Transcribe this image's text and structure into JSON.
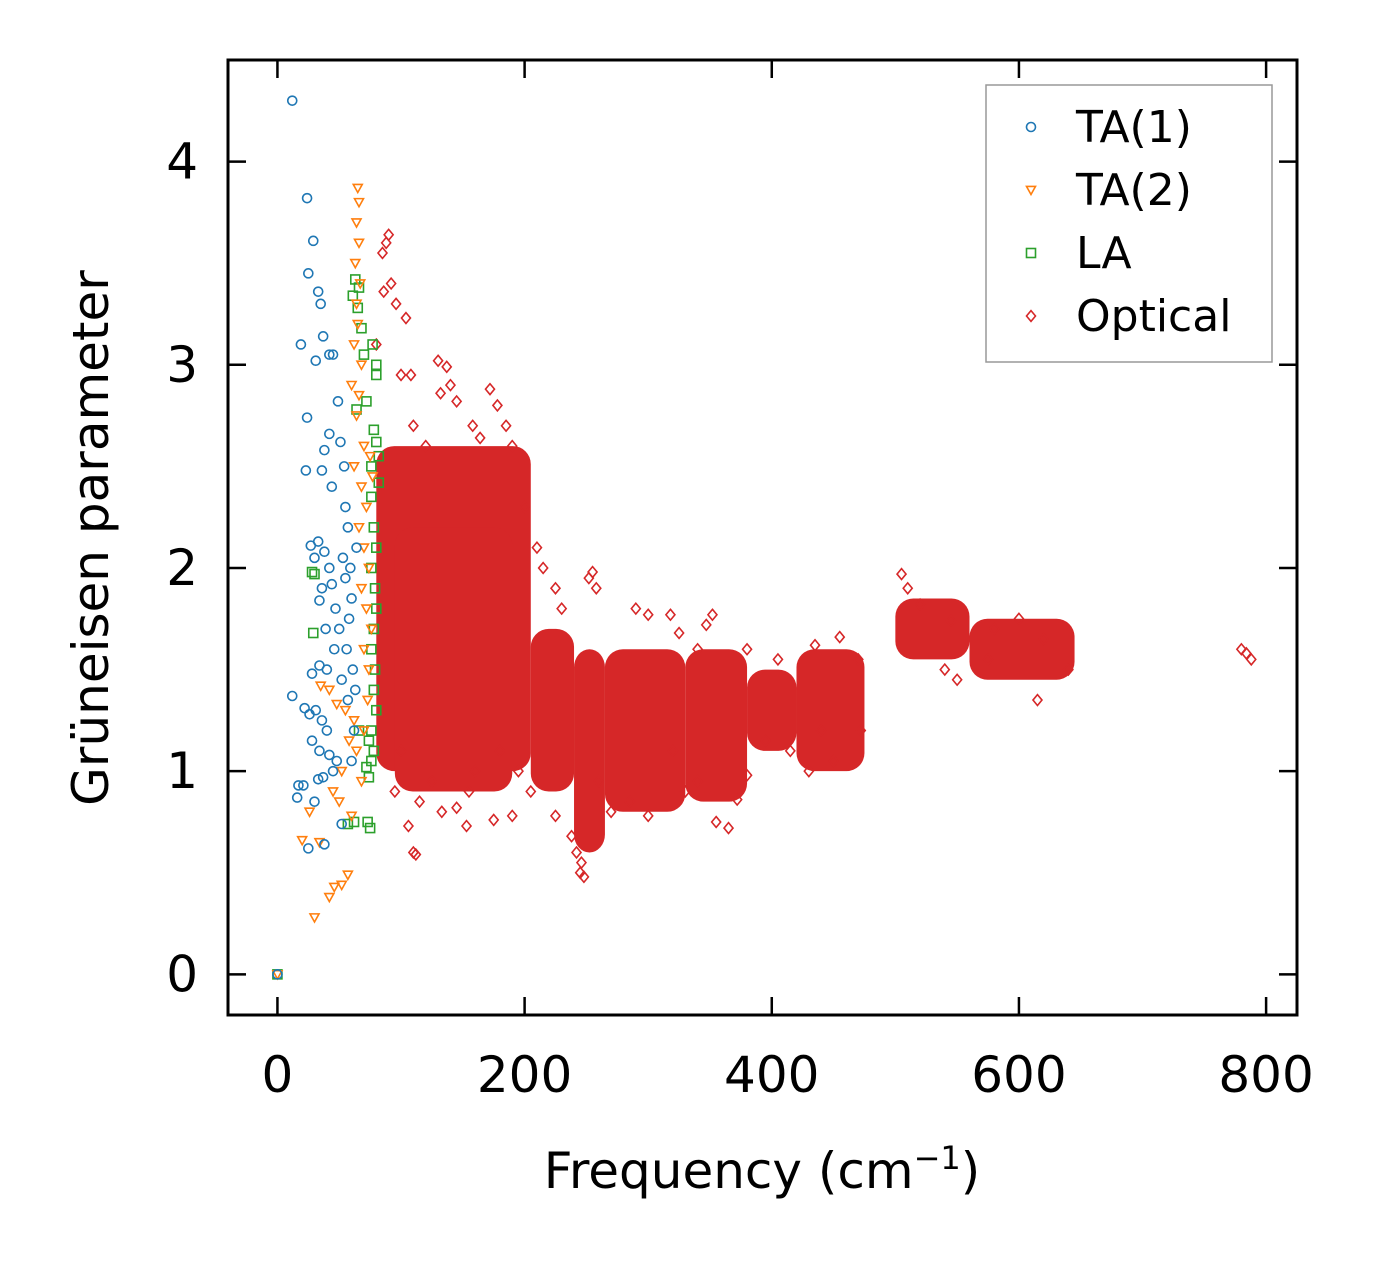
{
  "chart_data": {
    "type": "scatter",
    "title": "",
    "xlabel": "Frequency (cm",
    "xlabel_sup": "−1",
    "xlabel_close": ")",
    "ylabel": "Grüneisen parameter",
    "xlim": [
      -40,
      825
    ],
    "ylim": [
      -0.2,
      4.5
    ],
    "xticks": [
      0,
      200,
      400,
      600,
      800
    ],
    "yticks": [
      0,
      1,
      2,
      3,
      4
    ],
    "legend_position": "top-right",
    "series": [
      {
        "name": "TA(1)",
        "marker": "circle",
        "color": "#1f77b4",
        "points": [
          [
            0,
            0
          ],
          [
            12,
            4.3
          ],
          [
            24,
            3.82
          ],
          [
            29,
            3.61
          ],
          [
            25,
            3.45
          ],
          [
            33,
            3.36
          ],
          [
            35,
            3.3
          ],
          [
            19,
            3.1
          ],
          [
            31,
            3.02
          ],
          [
            24,
            2.74
          ],
          [
            37,
            3.14
          ],
          [
            42,
            3.05
          ],
          [
            45,
            3.05
          ],
          [
            38,
            2.58
          ],
          [
            42,
            2.66
          ],
          [
            44,
            2.4
          ],
          [
            49,
            2.82
          ],
          [
            51,
            2.62
          ],
          [
            54,
            2.5
          ],
          [
            23,
            2.48
          ],
          [
            36,
            2.48
          ],
          [
            27,
            2.11
          ],
          [
            33,
            2.13
          ],
          [
            30,
            2.05
          ],
          [
            38,
            2.08
          ],
          [
            42,
            2.0
          ],
          [
            36,
            1.9
          ],
          [
            44,
            1.92
          ],
          [
            47,
            1.8
          ],
          [
            50,
            1.7
          ],
          [
            34,
            1.84
          ],
          [
            39,
            1.7
          ],
          [
            28,
            1.48
          ],
          [
            34,
            1.52
          ],
          [
            40,
            1.5
          ],
          [
            46,
            1.6
          ],
          [
            52,
            1.45
          ],
          [
            12,
            1.37
          ],
          [
            22,
            1.31
          ],
          [
            26,
            1.28
          ],
          [
            31,
            1.3
          ],
          [
            36,
            1.25
          ],
          [
            40,
            1.2
          ],
          [
            28,
            1.15
          ],
          [
            34,
            1.1
          ],
          [
            42,
            1.08
          ],
          [
            48,
            1.05
          ],
          [
            17,
            0.93
          ],
          [
            21,
            0.93
          ],
          [
            33,
            0.96
          ],
          [
            37,
            0.97
          ],
          [
            45,
            1.0
          ],
          [
            16,
            0.87
          ],
          [
            30,
            0.85
          ],
          [
            52,
            0.74
          ],
          [
            38,
            0.64
          ],
          [
            25,
            0.62
          ],
          [
            55,
            2.3
          ],
          [
            57,
            2.2
          ],
          [
            59,
            2.0
          ],
          [
            60,
            1.85
          ],
          [
            58,
            1.75
          ],
          [
            56,
            1.6
          ],
          [
            61,
            1.5
          ],
          [
            63,
            1.4
          ],
          [
            62,
            1.2
          ],
          [
            60,
            1.05
          ],
          [
            64,
            2.1
          ],
          [
            53,
            2.05
          ],
          [
            55,
            1.95
          ],
          [
            57,
            1.35
          ]
        ]
      },
      {
        "name": "TA(2)",
        "marker": "triangle-down",
        "color": "#ff7f0e",
        "points": [
          [
            0,
            0
          ],
          [
            65,
            3.87
          ],
          [
            66,
            3.8
          ],
          [
            64,
            3.7
          ],
          [
            66,
            3.6
          ],
          [
            63,
            3.5
          ],
          [
            67,
            3.4
          ],
          [
            64,
            3.3
          ],
          [
            65,
            3.2
          ],
          [
            62,
            3.1
          ],
          [
            68,
            3.0
          ],
          [
            60,
            2.9
          ],
          [
            66,
            2.85
          ],
          [
            64,
            2.75
          ],
          [
            70,
            2.6
          ],
          [
            62,
            2.5
          ],
          [
            68,
            2.4
          ],
          [
            72,
            2.3
          ],
          [
            66,
            2.2
          ],
          [
            70,
            2.1
          ],
          [
            74,
            2.0
          ],
          [
            68,
            1.9
          ],
          [
            72,
            1.8
          ],
          [
            76,
            1.7
          ],
          [
            70,
            1.6
          ],
          [
            74,
            1.5
          ],
          [
            35,
            1.42
          ],
          [
            42,
            1.4
          ],
          [
            48,
            1.33
          ],
          [
            55,
            1.3
          ],
          [
            62,
            1.25
          ],
          [
            70,
            1.2
          ],
          [
            58,
            1.15
          ],
          [
            64,
            1.1
          ],
          [
            52,
            1.0
          ],
          [
            68,
            0.95
          ],
          [
            45,
            0.9
          ],
          [
            50,
            0.85
          ],
          [
            20,
            0.66
          ],
          [
            26,
            0.8
          ],
          [
            34,
            0.65
          ],
          [
            60,
            0.78
          ],
          [
            42,
            0.38
          ],
          [
            46,
            0.43
          ],
          [
            52,
            0.44
          ],
          [
            57,
            0.49
          ],
          [
            30,
            0.28
          ],
          [
            75,
            2.55
          ],
          [
            77,
            2.45
          ],
          [
            73,
            1.35
          ]
        ]
      },
      {
        "name": "LA",
        "marker": "square",
        "color": "#2ca02c",
        "points": [
          [
            0,
            0
          ],
          [
            63,
            3.42
          ],
          [
            66,
            3.38
          ],
          [
            61,
            3.34
          ],
          [
            65,
            3.28
          ],
          [
            68,
            3.18
          ],
          [
            70,
            3.05
          ],
          [
            77,
            3.1
          ],
          [
            80,
            3.0
          ],
          [
            72,
            2.82
          ],
          [
            64,
            2.78
          ],
          [
            78,
            2.68
          ],
          [
            80,
            2.62
          ],
          [
            76,
            2.5
          ],
          [
            82,
            2.42
          ],
          [
            76,
            2.35
          ],
          [
            78,
            2.2
          ],
          [
            80,
            2.1
          ],
          [
            76,
            2.0
          ],
          [
            79,
            1.9
          ],
          [
            80,
            1.8
          ],
          [
            78,
            1.7
          ],
          [
            76,
            1.6
          ],
          [
            79,
            1.5
          ],
          [
            78,
            1.4
          ],
          [
            80,
            1.3
          ],
          [
            76,
            1.2
          ],
          [
            78,
            1.1
          ],
          [
            28,
            1.98
          ],
          [
            30,
            1.97
          ],
          [
            29,
            1.68
          ],
          [
            74,
            1.15
          ],
          [
            76,
            1.05
          ],
          [
            72,
            1.02
          ],
          [
            74,
            0.97
          ],
          [
            66,
            1.2
          ],
          [
            62,
            0.75
          ],
          [
            57,
            0.74
          ],
          [
            75,
            0.72
          ],
          [
            73,
            0.75
          ],
          [
            80,
            2.95
          ],
          [
            82,
            2.55
          ]
        ]
      },
      {
        "name": "Optical",
        "marker": "diamond",
        "color": "#d62728",
        "points": [
          [
            90,
            3.64
          ],
          [
            88,
            3.6
          ],
          [
            85,
            3.55
          ],
          [
            92,
            3.4
          ],
          [
            86,
            3.36
          ],
          [
            96,
            3.3
          ],
          [
            104,
            3.23
          ],
          [
            80,
            3.1
          ],
          [
            100,
            2.95
          ],
          [
            108,
            2.95
          ],
          [
            130,
            3.02
          ],
          [
            137,
            2.99
          ],
          [
            132,
            2.86
          ],
          [
            140,
            2.9
          ],
          [
            145,
            2.82
          ],
          [
            172,
            2.88
          ],
          [
            178,
            2.8
          ],
          [
            158,
            2.7
          ],
          [
            164,
            2.64
          ],
          [
            185,
            2.7
          ],
          [
            190,
            2.6
          ],
          [
            110,
            2.7
          ],
          [
            120,
            2.6
          ],
          [
            200,
            2.3
          ],
          [
            210,
            2.1
          ],
          [
            215,
            2.0
          ],
          [
            225,
            1.9
          ],
          [
            230,
            1.8
          ],
          [
            255,
            1.98
          ],
          [
            252,
            1.95
          ],
          [
            258,
            1.9
          ],
          [
            290,
            1.8
          ],
          [
            300,
            1.77
          ],
          [
            318,
            1.77
          ],
          [
            352,
            1.77
          ],
          [
            347,
            1.72
          ],
          [
            325,
            1.68
          ],
          [
            340,
            1.6
          ],
          [
            380,
            1.6
          ],
          [
            405,
            1.55
          ],
          [
            435,
            1.62
          ],
          [
            455,
            1.66
          ],
          [
            470,
            1.55
          ],
          [
            505,
            1.97
          ],
          [
            510,
            1.9
          ],
          [
            520,
            1.82
          ],
          [
            545,
            1.74
          ],
          [
            580,
            1.7
          ],
          [
            600,
            1.75
          ],
          [
            620,
            1.65
          ],
          [
            640,
            1.5
          ],
          [
            780,
            1.6
          ],
          [
            784,
            1.58
          ],
          [
            788,
            1.55
          ],
          [
            110,
            0.6
          ],
          [
            112,
            0.59
          ],
          [
            106,
            0.73
          ],
          [
            133,
            0.8
          ],
          [
            145,
            0.82
          ],
          [
            153,
            0.73
          ],
          [
            190,
            0.78
          ],
          [
            175,
            0.76
          ],
          [
            225,
            0.78
          ],
          [
            238,
            0.68
          ],
          [
            242,
            0.6
          ],
          [
            246,
            0.55
          ],
          [
            245,
            0.5
          ],
          [
            248,
            0.48
          ],
          [
            270,
            0.8
          ],
          [
            300,
            0.78
          ],
          [
            330,
            0.9
          ],
          [
            355,
            0.75
          ],
          [
            365,
            0.72
          ],
          [
            372,
            0.86
          ],
          [
            380,
            0.98
          ],
          [
            430,
            1.0
          ],
          [
            450,
            1.05
          ],
          [
            472,
            1.2
          ],
          [
            540,
            1.5
          ],
          [
            615,
            1.35
          ],
          [
            550,
            1.45
          ],
          [
            575,
            1.55
          ],
          [
            95,
            0.9
          ],
          [
            100,
            1.1
          ],
          [
            115,
            0.85
          ],
          [
            125,
            0.95
          ],
          [
            155,
            0.9
          ],
          [
            160,
            1.0
          ],
          [
            180,
            1.1
          ],
          [
            195,
            1.0
          ],
          [
            205,
            0.9
          ],
          [
            260,
            0.95
          ],
          [
            285,
            0.85
          ],
          [
            320,
            1.1
          ],
          [
            340,
            0.95
          ],
          [
            395,
            1.15
          ],
          [
            415,
            1.1
          ],
          [
            440,
            1.2
          ]
        ]
      }
    ],
    "optical_bands": [
      {
        "x0": 80,
        "x1": 205,
        "ylow": 1.0,
        "yhigh": 2.6
      },
      {
        "x0": 95,
        "x1": 190,
        "ylow": 0.9,
        "yhigh": 2.2
      },
      {
        "x0": 205,
        "x1": 240,
        "ylow": 0.9,
        "yhigh": 1.7
      },
      {
        "x0": 240,
        "x1": 265,
        "ylow": 0.6,
        "yhigh": 1.6
      },
      {
        "x0": 265,
        "x1": 330,
        "ylow": 0.8,
        "yhigh": 1.6
      },
      {
        "x0": 330,
        "x1": 380,
        "ylow": 0.85,
        "yhigh": 1.6
      },
      {
        "x0": 380,
        "x1": 420,
        "ylow": 1.1,
        "yhigh": 1.5
      },
      {
        "x0": 420,
        "x1": 475,
        "ylow": 1.0,
        "yhigh": 1.6
      },
      {
        "x0": 500,
        "x1": 560,
        "ylow": 1.55,
        "yhigh": 1.85
      },
      {
        "x0": 560,
        "x1": 645,
        "ylow": 1.45,
        "yhigh": 1.75
      }
    ]
  }
}
